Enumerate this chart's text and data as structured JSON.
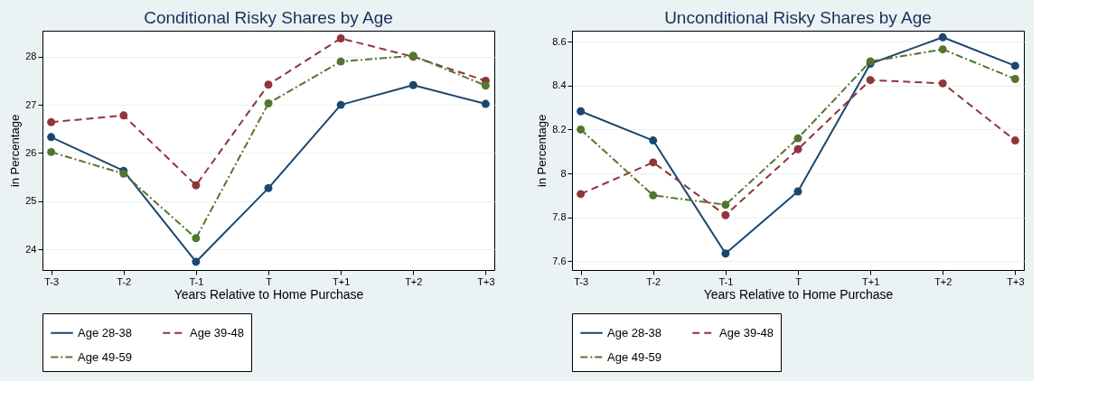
{
  "chart_data": [
    {
      "type": "line",
      "title": "Conditional Risky Shares by Age",
      "xlabel": "Years Relative to Home Purchase",
      "ylabel": "in Percentage",
      "categories": [
        "T-3",
        "T-2",
        "T-1",
        "T",
        "T+1",
        "T+2",
        "T+3"
      ],
      "series": [
        {
          "name": "Age 28-38",
          "color": "#1a476f",
          "line_style": "solid",
          "values": [
            26.33,
            25.63,
            23.74,
            25.27,
            27.0,
            27.41,
            27.02
          ]
        },
        {
          "name": "Age 39-48",
          "color": "#90353b",
          "line_style": "dashed",
          "values": [
            26.64,
            26.78,
            25.33,
            27.42,
            28.38,
            28.0,
            27.5
          ]
        },
        {
          "name": "Age 49-59",
          "color": "#55752f",
          "line_style": "dashdot",
          "values": [
            26.02,
            25.57,
            24.23,
            27.03,
            27.9,
            28.02,
            27.4
          ]
        }
      ],
      "ylim": [
        23.57,
        28.54
      ],
      "yticks": [
        24,
        25,
        26,
        27,
        28
      ],
      "grid": "y",
      "legend": "bottom",
      "marker": "circle"
    },
    {
      "type": "line",
      "title": "Unconditional Risky Shares by Age",
      "xlabel": "Years Relative to Home Purchase",
      "ylabel": "in Percentage",
      "categories": [
        "T-3",
        "T-2",
        "T-1",
        "T",
        "T+1",
        "T+2",
        "T+3"
      ],
      "series": [
        {
          "name": "Age 28-38",
          "color": "#1a476f",
          "line_style": "solid",
          "values": [
            8.283,
            8.15,
            7.635,
            7.918,
            8.5,
            8.62,
            8.49
          ]
        },
        {
          "name": "Age 39-48",
          "color": "#90353b",
          "line_style": "dashed",
          "values": [
            7.906,
            8.05,
            7.81,
            8.11,
            8.425,
            8.41,
            8.15
          ]
        },
        {
          "name": "Age 49-59",
          "color": "#55752f",
          "line_style": "dashdot",
          "values": [
            8.2,
            7.9,
            7.857,
            8.16,
            8.51,
            8.565,
            8.43
          ]
        }
      ],
      "ylim": [
        7.56,
        8.65
      ],
      "yticks": [
        {
          "value": 7.6,
          "label": "7.6"
        },
        {
          "value": 7.8,
          "label": "7.8"
        },
        {
          "value": 8,
          "label": "8"
        },
        {
          "value": 8.2,
          "label": "8.2"
        },
        {
          "value": 8.4,
          "label": "8.4"
        },
        {
          "value": 8.6,
          "label": "8.6"
        }
      ],
      "grid": "y",
      "legend": "bottom",
      "marker": "circle"
    }
  ]
}
